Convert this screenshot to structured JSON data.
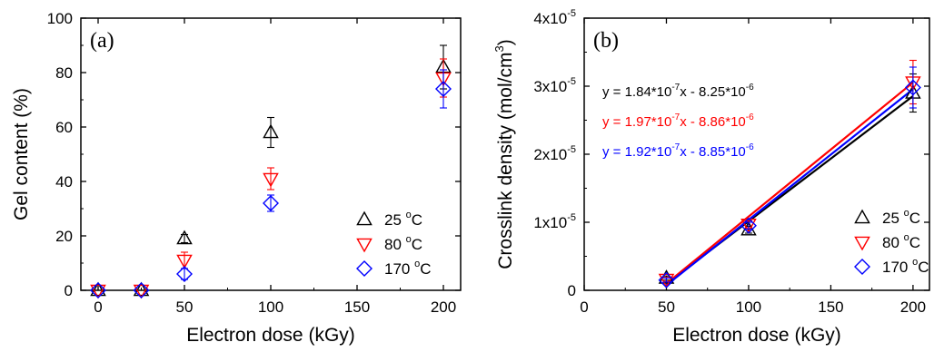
{
  "chart_data": [
    {
      "type": "scatter",
      "panel_label": "(a)",
      "xlabel": "Electron dose (kGy)",
      "ylabel": "Gel content (%)",
      "xlim": [
        -10,
        210
      ],
      "ylim": [
        0,
        100
      ],
      "xticks": [
        0,
        50,
        100,
        150,
        200
      ],
      "yticks": [
        0,
        20,
        40,
        60,
        80,
        100
      ],
      "grid": false,
      "legend_position": "lower-right",
      "series": [
        {
          "name": "25 °C",
          "name_base": "25 ",
          "name_unit": "C",
          "marker": "triangle-up",
          "color": "#000000",
          "x": [
            0,
            25,
            50,
            100,
            200
          ],
          "y": [
            0,
            0,
            19,
            58,
            82
          ],
          "err": [
            0,
            0,
            1.5,
            5.5,
            8
          ]
        },
        {
          "name": "80 °C",
          "name_base": "80 ",
          "name_unit": "C",
          "marker": "triangle-down",
          "color": "#ff0000",
          "x": [
            0,
            25,
            50,
            100,
            200
          ],
          "y": [
            0,
            0,
            11,
            41,
            78
          ],
          "err": [
            0,
            0,
            3,
            4,
            7
          ]
        },
        {
          "name": "170 °C",
          "name_base": "170 ",
          "name_unit": "C",
          "marker": "diamond",
          "color": "#0000ff",
          "x": [
            0,
            25,
            50,
            100,
            200
          ],
          "y": [
            0,
            0,
            6,
            32,
            74
          ],
          "err": [
            0,
            0,
            2,
            3,
            7
          ]
        }
      ]
    },
    {
      "type": "scatter",
      "panel_label": "(b)",
      "xlabel": "Electron dose (kGy)",
      "ylabel": "Crosslink density (mol/cm3)",
      "ylabel_base": "Crosslink density (mol/cm",
      "ylabel_sup": "3",
      "ylabel_close": ")",
      "xlim": [
        0,
        210
      ],
      "ylim": [
        0,
        4e-05
      ],
      "xticks": [
        0,
        50,
        100,
        150,
        200
      ],
      "yticks": [
        0,
        1e-05,
        2e-05,
        3e-05,
        4e-05
      ],
      "ytick_labels": [
        {
          "base": "0",
          "exp": ""
        },
        {
          "base": "1x10",
          "exp": "-5"
        },
        {
          "base": "2x10",
          "exp": "-5"
        },
        {
          "base": "3x10",
          "exp": "-5"
        },
        {
          "base": "4x10",
          "exp": "-5"
        }
      ],
      "grid": false,
      "legend_position": "lower-right",
      "equations": [
        {
          "text": "y = 1.84*10-7x - 8.25*10-6",
          "parts": [
            "y = 1.84*10",
            "-7",
            "x - 8.25*10",
            "-6"
          ],
          "color": "#000000"
        },
        {
          "text": "y = 1.97*10-7x - 8.86*10-6",
          "parts": [
            "y = 1.97*10",
            "-7",
            "x - 8.86*10",
            "-6"
          ],
          "color": "#ff0000"
        },
        {
          "text": "y = 1.92*10-7x - 8.85*10-6",
          "parts": [
            "y = 1.92*10",
            "-7",
            "x - 8.85*10",
            "-6"
          ],
          "color": "#0000ff"
        }
      ],
      "series": [
        {
          "name": "25 °C",
          "name_base": "25 ",
          "name_unit": "C",
          "marker": "triangle-up",
          "color": "#000000",
          "x": [
            50,
            100,
            200
          ],
          "y": [
            1.8e-06,
            8.9e-06,
            2.9e-05
          ],
          "err": [
            3e-07,
            5e-07,
            2.8e-06
          ],
          "fit": {
            "slope": 1.84e-07,
            "intercept": -8.25e-06
          }
        },
        {
          "name": "80 °C",
          "name_base": "80 ",
          "name_unit": "C",
          "marker": "triangle-down",
          "color": "#ff0000",
          "x": [
            50,
            100,
            200
          ],
          "y": [
            1.6e-06,
            9.7e-06,
            3.06e-05
          ],
          "err": [
            3e-07,
            5e-07,
            3.2e-06
          ],
          "fit": {
            "slope": 1.97e-07,
            "intercept": -8.86e-06
          }
        },
        {
          "name": "170 °C",
          "name_base": "170 ",
          "name_unit": "C",
          "marker": "diamond",
          "color": "#0000ff",
          "x": [
            50,
            100,
            200
          ],
          "y": [
            1.5e-06,
            9.5e-06,
            2.98e-05
          ],
          "err": [
            3e-07,
            5e-07,
            3e-06
          ],
          "fit": {
            "slope": 1.92e-07,
            "intercept": -8.85e-06
          }
        }
      ]
    }
  ]
}
